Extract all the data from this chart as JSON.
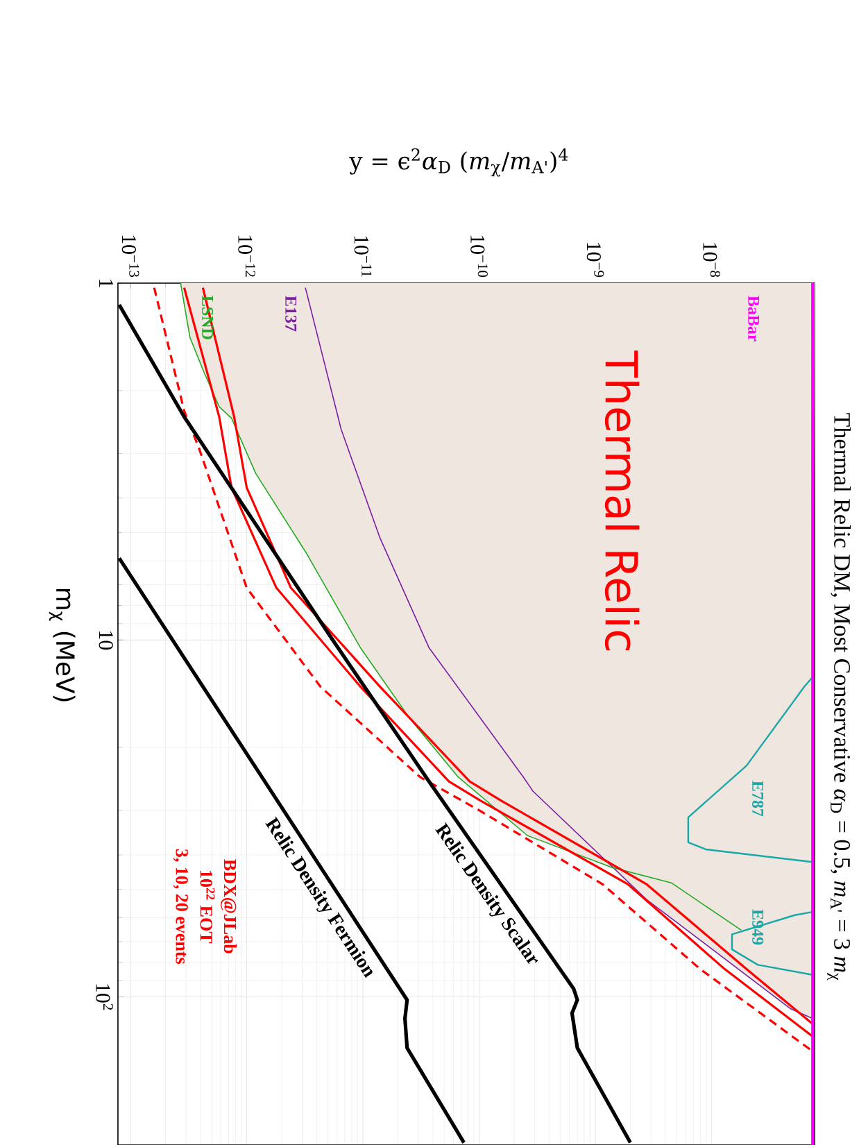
{
  "chart_data": {
    "type": "line",
    "title": "Thermal Relic DM, Most Conservative  *α*$_{D}$ = 0.5,  *m*$_{A'}$ = 3 *m*$_{χ}$",
    "xlabel": "y = ϵ$^{2}$*α*$_{D}$ (*m*$_{χ}$/*m*$_{A'}$)$^{4}$",
    "ylabel": "m$_{χ}$ (MeV)",
    "log": "xy",
    "grid": true,
    "xlim": [
      7.8e-14,
      7.7e-08
    ],
    "ylim": [
      260,
      1
    ],
    "xticks": [
      {
        "value": 1e-13,
        "label": "10$^{−13}$"
      },
      {
        "value": 1e-12,
        "label": "10$^{−12}$"
      },
      {
        "value": 1e-11,
        "label": "10$^{−11}$"
      },
      {
        "value": 1e-10,
        "label": "10$^{−10}$"
      },
      {
        "value": 1e-09,
        "label": "10$^{−9}$"
      },
      {
        "value": 1e-08,
        "label": "10$^{−8}$"
      }
    ],
    "yticks": [
      {
        "value": 1,
        "label": "1"
      },
      {
        "value": 10,
        "label": "10"
      },
      {
        "value": 100,
        "label": "10$^{2}$"
      }
    ],
    "series": [
      {
        "type": "area",
        "color": "#efe6df",
        "values": [
          1.0,
          1.42,
          1.78,
          2.22,
          2.39,
          3.42,
          5.7,
          10.5,
          16.5,
          24.2,
          35.3,
          43.4,
          53.3,
          108,
          115
        ],
        "x": [
          2.7e-13,
          3.25e-13,
          4.3e-13,
          5.8e-13,
          7.4e-13,
          1.2e-12,
          3.25e-12,
          9.5e-12,
          2.5e-11,
          6.6e-11,
          2.6e-10,
          1.4e-09,
          2.75e-09,
          4.8e-08,
          7.4e-08
        ]
      },
      {
        "name": "E137",
        "color": "#7b1fa2",
        "values": [
          1.03,
          2.57,
          5.17,
          10.5,
          24.2,
          26.5,
          53.3,
          108,
          115
        ],
        "x": [
          3.2e-12,
          6.5e-12,
          1.4e-11,
          3.7e-11,
          2.4e-10,
          2.9e-10,
          2.75e-09,
          4.8e-08,
          7.4e-08
        ]
      },
      {
        "name": "LSND",
        "color": "#22aa22",
        "values": [
          1.0,
          1.42,
          1.78,
          2.22,
          2.39,
          3.42,
          5.7,
          10.5,
          16.5,
          24.2,
          35.3,
          43.4,
          47.9,
          65.0
        ],
        "x": [
          2.7e-13,
          3.25e-13,
          4.3e-13,
          5.8e-13,
          7.4e-13,
          1.2e-12,
          3.25e-12,
          9.5e-12,
          2.5e-11,
          6.6e-11,
          2.6e-10,
          1.4e-09,
          4.5e-09,
          1.8e-08
        ]
      },
      {
        "name": "E787",
        "color": "#1aa7a7",
        "values": [
          12.7,
          13.5,
          22.5,
          31.4,
          36.9,
          38.6,
          41.9
        ],
        "x": [
          7.4e-08,
          6.3e-08,
          2e-08,
          6.3e-09,
          6.3e-09,
          8.9e-09,
          7.4e-08
        ]
      },
      {
        "name": "E949",
        "color": "#1aa7a7",
        "values": [
          57.8,
          59,
          66.8,
          73.6,
          81.3,
          86.7
        ],
        "x": [
          7.4e-08,
          5.2e-08,
          1.5e-08,
          1.5e-08,
          2.5e-08,
          7.4e-08
        ]
      },
      {
        "color": "#ff0000",
        "line_style": "dashed",
        "values": [
          1.03,
          2.28,
          2.91,
          7.14,
          13.5,
          24.2,
          30.0,
          48.3,
          83.6,
          142
        ],
        "x": [
          1.6e-13,
          2.9e-13,
          3.9e-13,
          1e-12,
          4.3e-12,
          3.1e-11,
          1e-10,
          1.15e-09,
          8e-09,
          7.4e-08
        ]
      },
      {
        "color": "#ff0000",
        "values": [
          1.03,
          2.37,
          3.74,
          7.14,
          13.5,
          24.9,
          28.2,
          48.3,
          83.6,
          129
        ],
        "x": [
          2.9e-13,
          5.8e-13,
          7.4e-13,
          1.8e-12,
          9.5e-12,
          5.5e-11,
          1.03e-10,
          1.9e-09,
          1.3e-08,
          7.4e-08
        ]
      },
      {
        "color": "#ff0000",
        "values": [
          1.03,
          2.37,
          3.74,
          7.14,
          13.5,
          24.9,
          28.2,
          48.3,
          83.6,
          119
        ],
        "x": [
          4.2e-13,
          7.8e-13,
          1e-12,
          2.4e-12,
          1.4e-11,
          8.3e-11,
          1.55e-10,
          2.75e-09,
          2e-08,
          7.4e-08
        ]
      },
      {
        "name": "Relic Density Scalar",
        "color": "#000000",
        "values": [
          1.15,
          2.37,
          10,
          24.9,
          94.8,
          102,
          111,
          139,
          256
        ],
        "x": [
          8e-14,
          2.9e-13,
          5.5e-12,
          3.7e-11,
          6.5e-10,
          7e-10,
          6.3e-10,
          7e-10,
          2e-09
        ]
      },
      {
        "name": "Relic Density Fermion",
        "color": "#000000",
        "values": [
          5.9,
          24.2,
          102,
          115,
          139,
          256
        ],
        "x": [
          8e-14,
          1.35e-12,
          2.4e-11,
          2.3e-11,
          2.4e-11,
          7.4e-11
        ]
      }
    ],
    "ref_lines": [
      {
        "axis": "x",
        "value": 7.4e-08,
        "label": "BaBar",
        "color": "#ff00ff"
      }
    ],
    "annotations": [
      "Thermal Relic",
      "BDX@JLab",
      "10$^{22}$ EOT",
      "3, 10, 20 events"
    ]
  }
}
